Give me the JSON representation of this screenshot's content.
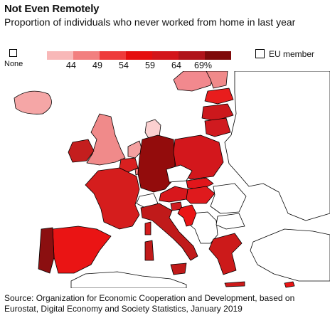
{
  "header": {
    "title": "Not Even Remotely",
    "subtitle": "Proportion of individuals who never worked from home in last year"
  },
  "legend": {
    "none_label": "None",
    "none_color": "#ffffff",
    "scale_colors": [
      "#f8b8b8",
      "#f27f7f",
      "#ee3b3b",
      "#e50f0f",
      "#d3151a",
      "#b0141a",
      "#7f0a0a"
    ],
    "ticks": [
      "44",
      "49",
      "54",
      "59",
      "64",
      "69%"
    ],
    "eu_label": "EU member"
  },
  "map_colors": {
    "uk": "#f08a8a",
    "ireland": "#c41e1e",
    "iceland": "#f5a6a6",
    "norway": "#f2898e",
    "denmark": "#fbd0d0",
    "netherlands": "#f4a0a0",
    "belgium": "#d92020",
    "luxembourg": "#f27f7f",
    "france": "#d51d1d",
    "spain": "#ea1414",
    "portugal": "#8b0f10",
    "germany": "#930c0c",
    "czechia": "#ffffff",
    "switzerland": "#ffffff",
    "austria": "#d8171c",
    "poland": "#d3171c",
    "slovakia": "#e1161b",
    "hungary": "#df1a1d",
    "slovenia": "#cf1d22",
    "croatia": "#ea1414",
    "italy": "#c01a1a",
    "lithuania": "#d01a1f",
    "latvia": "#cc181c",
    "estonia": "#e81d1d",
    "finland": "#f08a8a",
    "greece": "#cc1a1a",
    "cyprus": "#ea1414",
    "romania": "#ffffff",
    "bulgaria": "#ffffff",
    "nonmember": "#ffffff"
  },
  "source": {
    "text": "Source: Organization for Economic Cooperation and Development, based on Eurostat, Digital Economy and Society Statistics, January 2019"
  }
}
